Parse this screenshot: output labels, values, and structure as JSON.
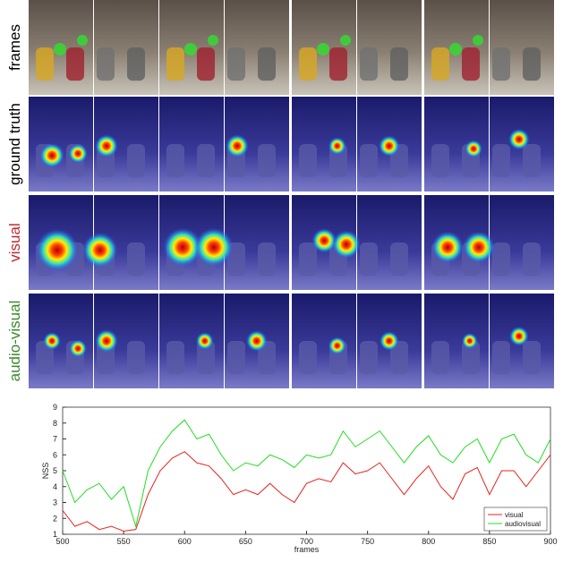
{
  "panel_rows": [
    "frames",
    "ground truth",
    "visual",
    "audio-visual"
  ],
  "chart_data": {
    "type": "line",
    "x": [
      500,
      510,
      520,
      530,
      540,
      550,
      560,
      570,
      580,
      590,
      600,
      610,
      620,
      630,
      640,
      650,
      660,
      670,
      680,
      690,
      700,
      710,
      720,
      730,
      740,
      750,
      760,
      770,
      780,
      790,
      800,
      810,
      820,
      830,
      840,
      850,
      860,
      870,
      880,
      890,
      900
    ],
    "series": [
      {
        "name": "visual",
        "color": "#e8221d",
        "values": [
          2.5,
          1.5,
          1.8,
          1.3,
          1.5,
          1.2,
          1.3,
          3.5,
          5.0,
          5.8,
          6.2,
          5.5,
          5.3,
          4.5,
          3.5,
          3.8,
          3.5,
          4.2,
          3.5,
          3.0,
          4.2,
          4.5,
          4.3,
          5.5,
          4.8,
          5.0,
          5.5,
          4.5,
          3.5,
          4.5,
          5.3,
          4.0,
          3.2,
          4.8,
          5.2,
          3.5,
          5.0,
          5.0,
          4.0,
          5.0,
          6.0
        ]
      },
      {
        "name": "audiovisual",
        "color": "#22dd22",
        "values": [
          5.0,
          3.0,
          3.8,
          4.2,
          3.2,
          4.0,
          1.5,
          5.0,
          6.5,
          7.5,
          8.2,
          7.0,
          7.3,
          6.0,
          5.0,
          5.5,
          5.3,
          6.0,
          5.7,
          5.2,
          6.0,
          5.8,
          6.0,
          7.5,
          6.5,
          7.0,
          7.5,
          6.5,
          5.5,
          6.5,
          7.2,
          6.0,
          5.5,
          6.5,
          7.0,
          5.5,
          7.0,
          7.3,
          6.0,
          5.5,
          7.0
        ]
      }
    ],
    "x_label": "frames",
    "y_label": "NSS",
    "xlim": [
      500,
      900
    ],
    "xticks": [
      500,
      550,
      600,
      650,
      700,
      750,
      800,
      850,
      900
    ],
    "ylim": [
      1,
      9
    ],
    "yticks": [
      1,
      2,
      3,
      4,
      5,
      6,
      7,
      8,
      9
    ],
    "legend": "lower right"
  }
}
